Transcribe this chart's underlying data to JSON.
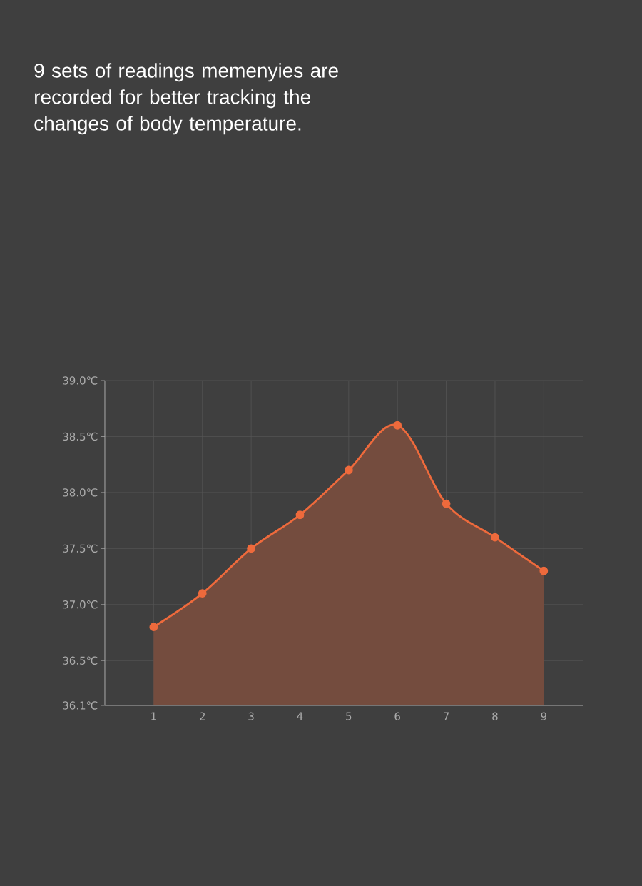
{
  "chart_data": {
    "type": "area",
    "title": "9 sets of readings memenyies are recorded for better tracking the changes of body temperature.",
    "x": [
      1,
      2,
      3,
      4,
      5,
      6,
      7,
      8,
      9
    ],
    "series": [
      {
        "color": "#ee6a3c",
        "values": [
          36.8,
          37.1,
          37.5,
          37.8,
          38.2,
          38.6,
          37.9,
          37.6,
          37.3
        ]
      }
    ],
    "xlim": [
      0,
      9.8
    ],
    "xticks": [
      1,
      2,
      3,
      4,
      5,
      6,
      7,
      8,
      9
    ],
    "ylim": [
      36.1,
      39.0
    ],
    "yticks": [
      {
        "value": 36.1,
        "label": "36.1℃"
      },
      {
        "value": 36.5,
        "label": "36.5℃"
      },
      {
        "value": 37.0,
        "label": "37.0℃"
      },
      {
        "value": 37.5,
        "label": "37.5℃"
      },
      {
        "value": 38.0,
        "label": "38.0℃"
      },
      {
        "value": 38.5,
        "label": "38.5℃"
      },
      {
        "value": 39.0,
        "label": "39.0℃"
      }
    ],
    "grid": true,
    "marker": "circle",
    "line_style": "solid"
  }
}
